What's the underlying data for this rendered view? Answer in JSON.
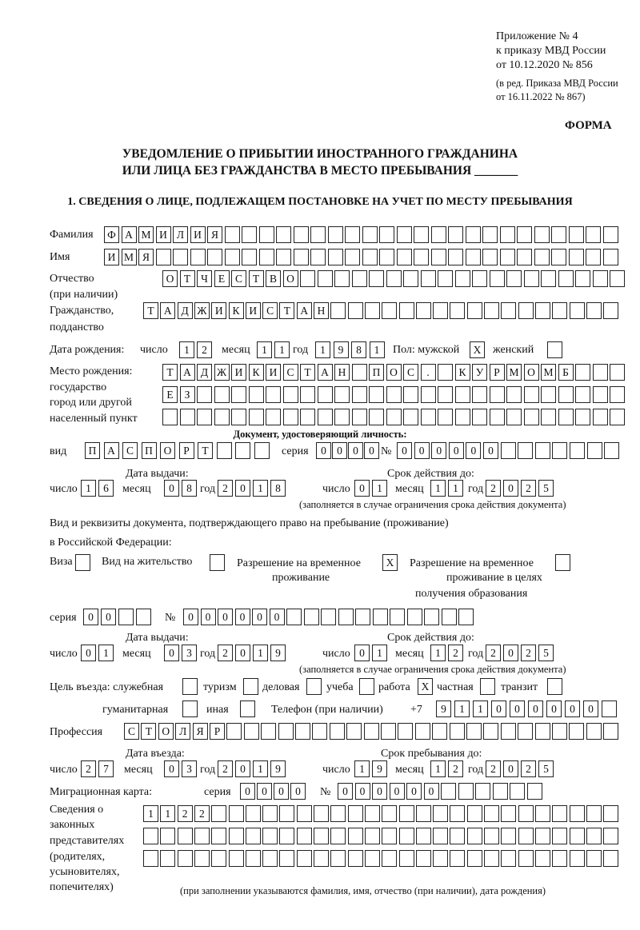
{
  "header": {
    "appendix": [
      "Приложение № 4",
      "к приказу МВД России",
      "от 10.12.2020 № 856"
    ],
    "amendment": [
      "(в ред. Приказа МВД России",
      "от 16.11.2022 № 867)"
    ],
    "form_label": "ФОРМА",
    "title": [
      "УВЕДОМЛЕНИЕ О ПРИБЫТИИ ИНОСТРАННОГО ГРАЖДАНИНА",
      "ИЛИ ЛИЦА БЕЗ ГРАЖДАНСТВА В МЕСТО ПРЕБЫВАНИЯ _______"
    ],
    "section": "1. СВЕДЕНИЯ О ЛИЦЕ, ПОДЛЕЖАЩЕМ ПОСТАНОВКЕ НА УЧЕТ ПО МЕСТУ ПРЕБЫВАНИЯ"
  },
  "person": {
    "surname": {
      "label": "Фамилия",
      "value": "ФАМИЛИЯ"
    },
    "name": {
      "label": "Имя",
      "value": "ИМЯ"
    },
    "patronymic": {
      "label": "Отчество",
      "label2": "(при наличии)",
      "value": "ОТЧЕСТВО"
    },
    "citizenship": {
      "label": "Гражданство,",
      "label2": "подданство",
      "value": "ТАДЖИКИСТАН"
    },
    "birth_date": {
      "label": "Дата рождения:",
      "day_label": "число",
      "day": "12",
      "month_label": "месяц",
      "month": "11",
      "year_label": "год",
      "year": "1981"
    },
    "sex": {
      "label": "Пол: мужской",
      "male": "X",
      "female_label": "женский",
      "female": ""
    },
    "birth_place": {
      "labels": [
        "Место рождения:",
        "государство",
        "город или другой",
        "населенный пункт"
      ],
      "line1": "ТАДЖИКИСТАН ПОС. КУРМОМБ",
      "line2": "ЕЗ",
      "line3": ""
    }
  },
  "id_document": {
    "heading": "Документ, удостоверяющий личность:",
    "type_label": "вид",
    "type": "ПАСПОРТ",
    "series_label": "серия",
    "series": "0000",
    "number_label": "№",
    "number": "000000",
    "issue_label": "Дата выдачи:",
    "valid_label": "Срок действия до:",
    "day_label": "число",
    "month_label": "месяц",
    "year_label": "год",
    "issue": {
      "day": "16",
      "month": "08",
      "year": "2018"
    },
    "valid": {
      "day": "01",
      "month": "11",
      "year": "2025"
    },
    "note": "(заполняется в случае ограничения срока действия документа)"
  },
  "residence_document": {
    "heading": "Вид и реквизиты документа, подтверждающего право на пребывание (проживание)",
    "heading2": "в Российской Федерации:",
    "visa_label": "Виза",
    "visa": "",
    "permit_label": "Вид на жительство",
    "permit": "",
    "temp_label": [
      "Разрешение на временное",
      "проживание"
    ],
    "temp": "X",
    "edu_label": [
      "Разрешение на временное",
      "проживание в целях",
      "получения образования"
    ],
    "edu": "",
    "series_label": "серия",
    "series": "00",
    "number_label": "№",
    "number": "000000",
    "issue_label": "Дата выдачи:",
    "valid_label": "Срок действия до:",
    "day_label": "число",
    "month_label": "месяц",
    "year_label": "год",
    "issue": {
      "day": "01",
      "month": "03",
      "year": "2019"
    },
    "valid": {
      "day": "01",
      "month": "12",
      "year": "2025"
    },
    "note": "(заполняется в случае ограничения срока действия документа)"
  },
  "purpose": {
    "label": "Цель въезда: служебная",
    "options": [
      {
        "label": "туризм",
        "value": ""
      },
      {
        "label": "деловая",
        "value": ""
      },
      {
        "label": "учеба",
        "value": ""
      },
      {
        "label": "работа",
        "value": "X"
      },
      {
        "label": "частная",
        "value": ""
      },
      {
        "label": "транзит",
        "value": ""
      },
      {
        "label": "гуманитарная",
        "value": ""
      },
      {
        "label": "иная",
        "value": ""
      }
    ],
    "official": ""
  },
  "phone": {
    "label": "Телефон (при наличии)",
    "prefix": "+7",
    "value": "911000000"
  },
  "profession": {
    "label": "Профессия",
    "value": "СТОЛЯР"
  },
  "stay": {
    "entry_label": "Дата въезда:",
    "until_label": "Срок пребывания до:",
    "day_label": "число",
    "month_label": "месяц",
    "year_label": "год",
    "entry": {
      "day": "27",
      "month": "03",
      "year": "2019"
    },
    "until": {
      "day": "19",
      "month": "12",
      "year": "2025"
    }
  },
  "migration_card": {
    "label": "Миграционная карта:",
    "series_label": "серия",
    "series": "0000",
    "number_label": "№",
    "number": "000000"
  },
  "representatives": {
    "labels": [
      "Сведения о",
      "законных",
      "представителях",
      "(родителях,",
      "усыновителях,",
      "попечителях)"
    ],
    "line1": "1122",
    "line2": "",
    "line3": "",
    "note": "(при заполнении указываются фамилия, имя, отчество (при наличии), дата рождения)"
  }
}
